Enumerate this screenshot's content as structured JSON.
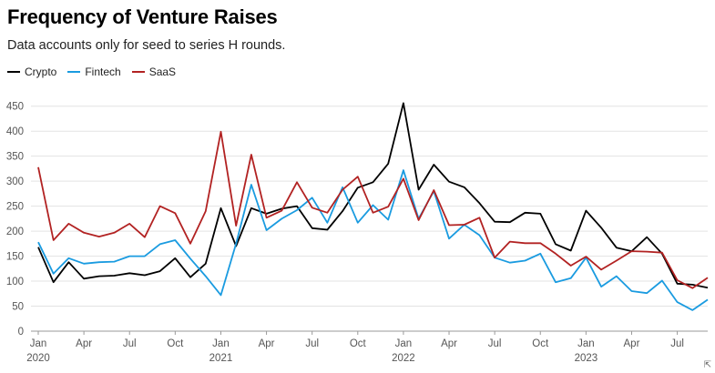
{
  "chart_data": {
    "type": "line",
    "title": "Frequency of Venture Raises",
    "subtitle": "Data accounts only for seed to series H rounds.",
    "xlabel": "",
    "ylabel": "",
    "ylim": [
      0,
      475
    ],
    "yticks": [
      0,
      50,
      100,
      150,
      200,
      250,
      300,
      350,
      400,
      450
    ],
    "grid": true,
    "legend_position": "top-left",
    "x_tick_labels": [
      {
        "index": 0,
        "month": "Jan",
        "year": "2020"
      },
      {
        "index": 3,
        "month": "Apr",
        "year": ""
      },
      {
        "index": 6,
        "month": "Jul",
        "year": ""
      },
      {
        "index": 9,
        "month": "Oct",
        "year": ""
      },
      {
        "index": 12,
        "month": "Jan",
        "year": "2021"
      },
      {
        "index": 15,
        "month": "Apr",
        "year": ""
      },
      {
        "index": 18,
        "month": "Jul",
        "year": ""
      },
      {
        "index": 21,
        "month": "Oct",
        "year": ""
      },
      {
        "index": 24,
        "month": "Jan",
        "year": "2022"
      },
      {
        "index": 27,
        "month": "Apr",
        "year": ""
      },
      {
        "index": 30,
        "month": "Jul",
        "year": ""
      },
      {
        "index": 33,
        "month": "Oct",
        "year": ""
      },
      {
        "index": 36,
        "month": "Jan",
        "year": "2023"
      },
      {
        "index": 39,
        "month": "Apr",
        "year": ""
      },
      {
        "index": 42,
        "month": "Jul",
        "year": ""
      }
    ],
    "series": [
      {
        "name": "Crypto",
        "color": "#000000",
        "values": [
          168,
          98,
          138,
          105,
          110,
          111,
          116,
          112,
          120,
          146,
          108,
          135,
          246,
          170,
          246,
          235,
          245,
          250,
          206,
          203,
          240,
          287,
          298,
          335,
          456,
          283,
          333,
          299,
          288,
          256,
          219,
          218,
          237,
          235,
          174,
          161,
          241,
          207,
          167,
          160,
          188,
          155,
          95,
          93,
          87
        ]
      },
      {
        "name": "Fintech",
        "color": "#1a9be0",
        "values": [
          178,
          115,
          146,
          135,
          138,
          139,
          150,
          150,
          174,
          182,
          145,
          110,
          72,
          175,
          293,
          202,
          225,
          242,
          267,
          217,
          288,
          217,
          252,
          223,
          322,
          225,
          280,
          185,
          213,
          192,
          147,
          137,
          141,
          155,
          98,
          106,
          147,
          89,
          110,
          80,
          76,
          101,
          58,
          42,
          63
        ]
      },
      {
        "name": "SaaS",
        "color": "#b22222",
        "values": [
          328,
          182,
          215,
          197,
          189,
          197,
          215,
          188,
          250,
          236,
          175,
          240,
          399,
          211,
          353,
          227,
          241,
          298,
          247,
          237,
          283,
          309,
          237,
          249,
          305,
          222,
          282,
          212,
          213,
          227,
          147,
          179,
          176,
          176,
          155,
          131,
          149,
          123,
          141,
          160,
          159,
          157,
          102,
          86,
          107
        ]
      }
    ]
  }
}
